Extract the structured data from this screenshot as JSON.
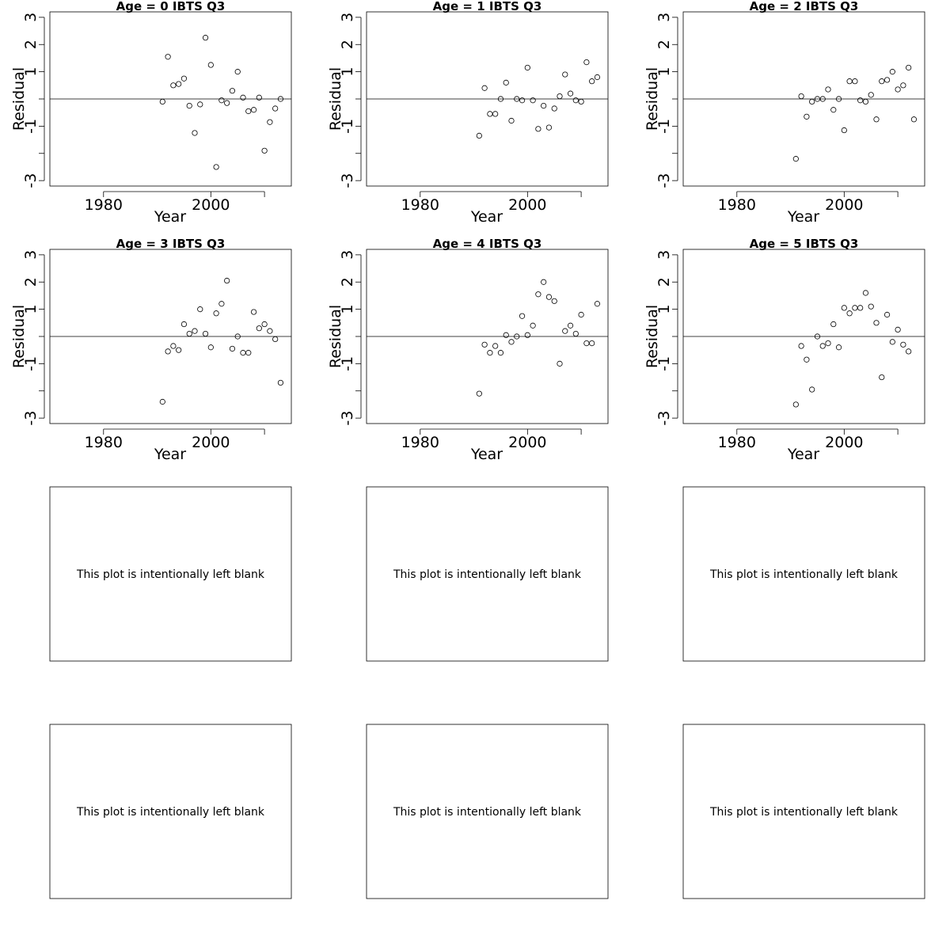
{
  "blank_message": "This plot is intentionally left blank",
  "blank_panel_count": 6,
  "chart_data": [
    {
      "type": "scatter",
      "title": "Age =  0 IBTS Q3",
      "xlabel": "Year",
      "ylabel": "Residual",
      "xlim": [
        1970,
        2015
      ],
      "ylim": [
        -3.2,
        3.2
      ],
      "x_ticks": [
        1980,
        2000,
        2010
      ],
      "x_tick_labels": [
        "1980",
        "2000",
        ""
      ],
      "y_ticks": [
        -3,
        -2,
        -1,
        0,
        1,
        2,
        3
      ],
      "y_tick_labels": [
        "-3",
        "",
        "-1",
        "",
        "1",
        "2",
        "3"
      ],
      "reference_line": 0,
      "grid": false,
      "x": [
        1991,
        1992,
        1993,
        1994,
        1995,
        1996,
        1997,
        1998,
        1999,
        2000,
        2001,
        2002,
        2003,
        2004,
        2005,
        2006,
        2007,
        2008,
        2009,
        2010,
        2011,
        2012,
        2013
      ],
      "y": [
        -0.1,
        1.55,
        0.5,
        0.55,
        0.75,
        -0.25,
        -1.25,
        -0.2,
        2.25,
        1.25,
        -2.5,
        -0.05,
        -0.15,
        0.3,
        1.0,
        0.05,
        -0.45,
        -0.4,
        0.05,
        -1.9,
        -0.85,
        -0.35,
        0.0
      ]
    },
    {
      "type": "scatter",
      "title": "Age =  1 IBTS Q3",
      "xlabel": "Year",
      "ylabel": "Residual",
      "xlim": [
        1970,
        2015
      ],
      "ylim": [
        -3.2,
        3.2
      ],
      "x_ticks": [
        1980,
        2000,
        2010
      ],
      "x_tick_labels": [
        "1980",
        "2000",
        ""
      ],
      "y_ticks": [
        -3,
        -2,
        -1,
        0,
        1,
        2,
        3
      ],
      "y_tick_labels": [
        "-3",
        "",
        "-1",
        "",
        "1",
        "2",
        "3"
      ],
      "reference_line": 0,
      "grid": false,
      "x": [
        1991,
        1992,
        1993,
        1994,
        1995,
        1996,
        1997,
        1998,
        1999,
        2000,
        2001,
        2002,
        2003,
        2004,
        2005,
        2006,
        2007,
        2008,
        2009,
        2010,
        2011,
        2012,
        2013
      ],
      "y": [
        -1.35,
        0.4,
        -0.55,
        -0.55,
        0.0,
        0.6,
        -0.8,
        0.0,
        -0.05,
        1.15,
        -0.05,
        -1.1,
        -0.25,
        -1.05,
        -0.35,
        0.1,
        0.9,
        0.2,
        -0.05,
        -0.1,
        1.35,
        0.65,
        0.8
      ]
    },
    {
      "type": "scatter",
      "title": "Age =  2 IBTS Q3",
      "xlabel": "Year",
      "ylabel": "Residual",
      "xlim": [
        1970,
        2015
      ],
      "ylim": [
        -3.2,
        3.2
      ],
      "x_ticks": [
        1980,
        2000,
        2010
      ],
      "x_tick_labels": [
        "1980",
        "2000",
        ""
      ],
      "y_ticks": [
        -3,
        -2,
        -1,
        0,
        1,
        2,
        3
      ],
      "y_tick_labels": [
        "-3",
        "",
        "-1",
        "",
        "1",
        "2",
        "3"
      ],
      "reference_line": 0,
      "grid": false,
      "x": [
        1991,
        1992,
        1993,
        1994,
        1995,
        1996,
        1997,
        1998,
        1999,
        2000,
        2001,
        2002,
        2003,
        2004,
        2005,
        2006,
        2007,
        2008,
        2009,
        2010,
        2011,
        2012,
        2013
      ],
      "y": [
        -2.2,
        0.1,
        -0.65,
        -0.1,
        0.0,
        0.0,
        0.35,
        -0.4,
        0.0,
        -1.15,
        0.65,
        0.65,
        -0.05,
        -0.1,
        0.15,
        -0.75,
        0.65,
        0.7,
        1.0,
        0.35,
        0.5,
        1.15,
        -0.75
      ]
    },
    {
      "type": "scatter",
      "title": "Age =  3 IBTS Q3",
      "xlabel": "Year",
      "ylabel": "Residual",
      "xlim": [
        1970,
        2015
      ],
      "ylim": [
        -3.2,
        3.2
      ],
      "x_ticks": [
        1980,
        2000,
        2010
      ],
      "x_tick_labels": [
        "1980",
        "2000",
        ""
      ],
      "y_ticks": [
        -3,
        -2,
        -1,
        0,
        1,
        2,
        3
      ],
      "y_tick_labels": [
        "-3",
        "",
        "-1",
        "",
        "1",
        "2",
        "3"
      ],
      "reference_line": 0,
      "grid": false,
      "x": [
        1991,
        1992,
        1993,
        1994,
        1995,
        1996,
        1997,
        1998,
        1999,
        2000,
        2001,
        2002,
        2003,
        2004,
        2005,
        2006,
        2007,
        2008,
        2009,
        2010,
        2011,
        2012,
        2013
      ],
      "y": [
        -2.4,
        -0.55,
        -0.35,
        -0.5,
        0.45,
        0.1,
        0.2,
        1.0,
        0.1,
        -0.4,
        0.85,
        1.2,
        2.05,
        -0.45,
        0.0,
        -0.6,
        -0.6,
        0.9,
        0.3,
        0.45,
        0.2,
        -0.1,
        -1.7
      ]
    },
    {
      "type": "scatter",
      "title": "Age =  4 IBTS Q3",
      "xlabel": "Year",
      "ylabel": "Residual",
      "xlim": [
        1970,
        2015
      ],
      "ylim": [
        -3.2,
        3.2
      ],
      "x_ticks": [
        1980,
        2000,
        2010
      ],
      "x_tick_labels": [
        "1980",
        "2000",
        ""
      ],
      "y_ticks": [
        -3,
        -2,
        -1,
        0,
        1,
        2,
        3
      ],
      "y_tick_labels": [
        "-3",
        "",
        "-1",
        "",
        "1",
        "2",
        "3"
      ],
      "reference_line": 0,
      "grid": false,
      "x": [
        1991,
        1992,
        1993,
        1994,
        1995,
        1996,
        1997,
        1998,
        1999,
        2000,
        2001,
        2002,
        2003,
        2004,
        2005,
        2006,
        2007,
        2008,
        2009,
        2010,
        2011,
        2012,
        2013
      ],
      "y": [
        -2.1,
        -0.3,
        -0.6,
        -0.35,
        -0.6,
        0.05,
        -0.2,
        0.0,
        0.75,
        0.05,
        0.4,
        1.55,
        2.0,
        1.45,
        1.3,
        -1.0,
        0.2,
        0.4,
        0.1,
        0.8,
        -0.25,
        -0.25,
        1.2
      ]
    },
    {
      "type": "scatter",
      "title": "Age =  5 IBTS Q3",
      "xlabel": "Year",
      "ylabel": "Residual",
      "xlim": [
        1970,
        2015
      ],
      "ylim": [
        -3.2,
        3.2
      ],
      "x_ticks": [
        1980,
        2000,
        2010
      ],
      "x_tick_labels": [
        "1980",
        "2000",
        ""
      ],
      "y_ticks": [
        -3,
        -2,
        -1,
        0,
        1,
        2,
        3
      ],
      "y_tick_labels": [
        "-3",
        "",
        "-1",
        "",
        "1",
        "2",
        "3"
      ],
      "reference_line": 0,
      "grid": false,
      "x": [
        1991,
        1992,
        1993,
        1994,
        1995,
        1996,
        1997,
        1998,
        1999,
        2000,
        2001,
        2002,
        2003,
        2004,
        2005,
        2006,
        2007,
        2008,
        2009,
        2010,
        2011,
        2012
      ],
      "y": [
        -2.5,
        -0.35,
        -0.85,
        -1.95,
        0.0,
        -0.35,
        -0.25,
        0.45,
        -0.4,
        1.05,
        0.85,
        1.05,
        1.05,
        1.6,
        1.1,
        0.5,
        -1.5,
        0.8,
        -0.2,
        0.25,
        -0.3,
        -0.55
      ]
    }
  ]
}
